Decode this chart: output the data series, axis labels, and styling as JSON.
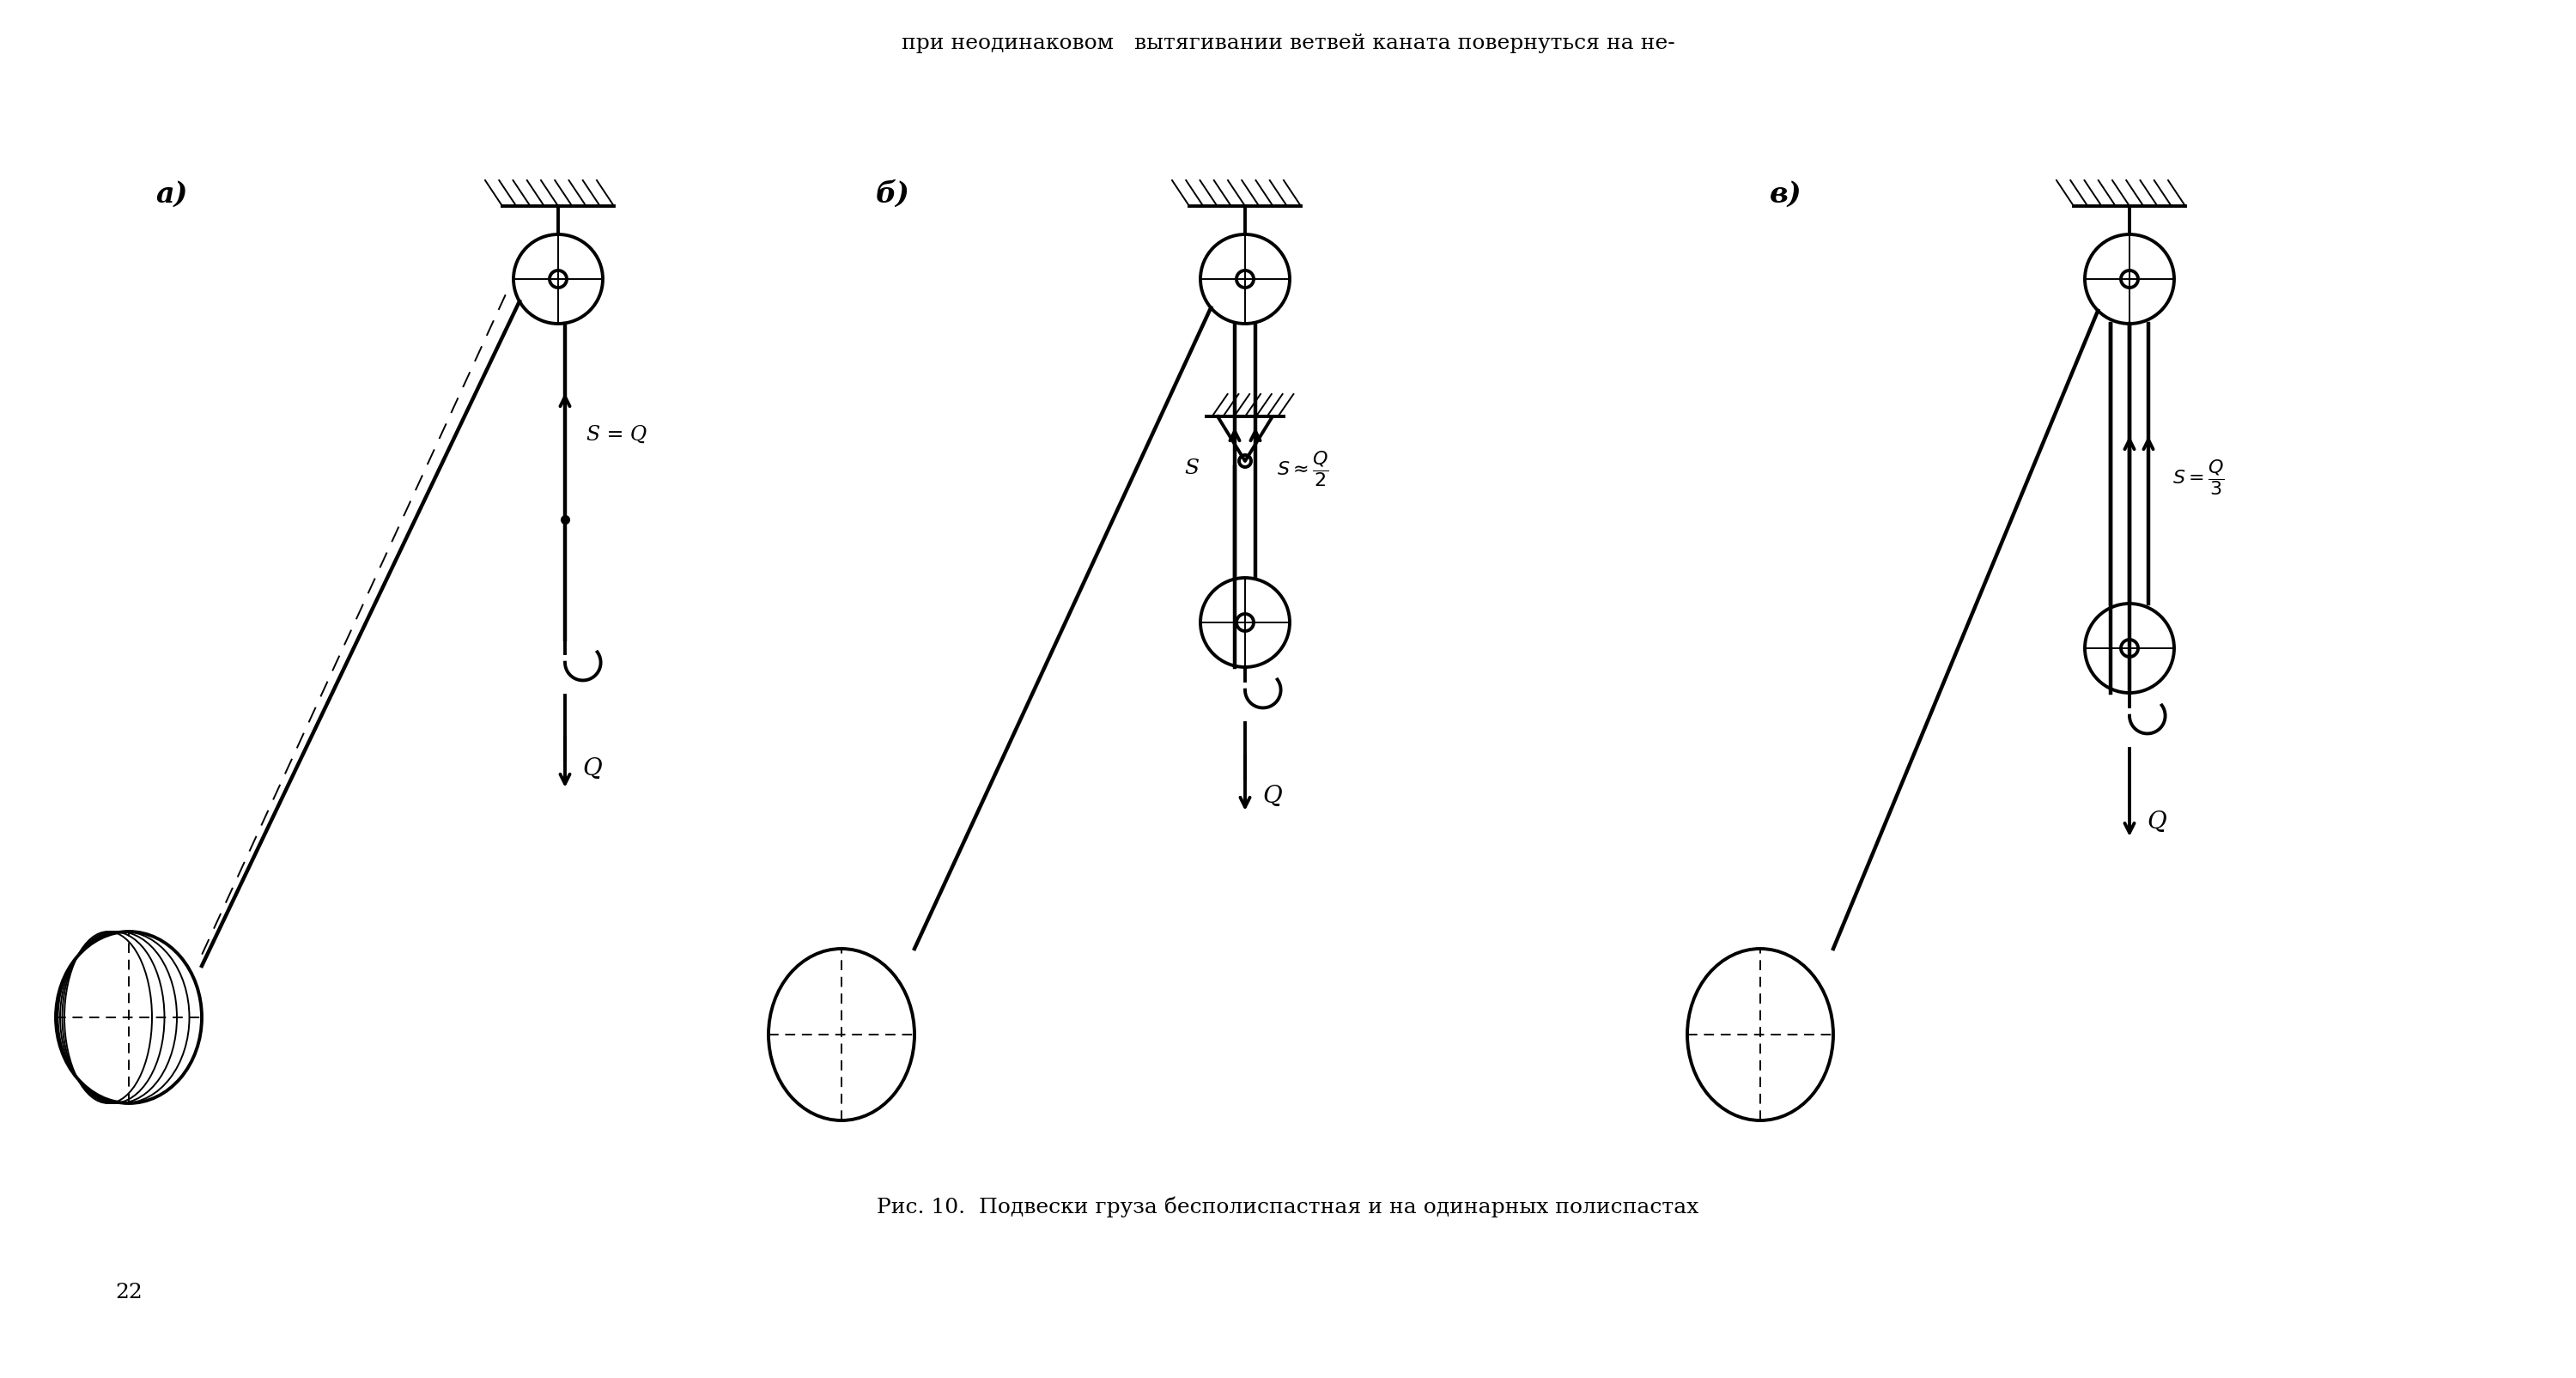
{
  "bg_color": "#ffffff",
  "title_text": "при неодинаковом   вытягивании ветвей каната повернуться на не-",
  "caption": "Рис. 10.  Подвески груза бесполиспастная и на одинарных полиспастах",
  "page_num": "22",
  "label_a": "а)",
  "label_b": "б)",
  "label_c": "в)"
}
